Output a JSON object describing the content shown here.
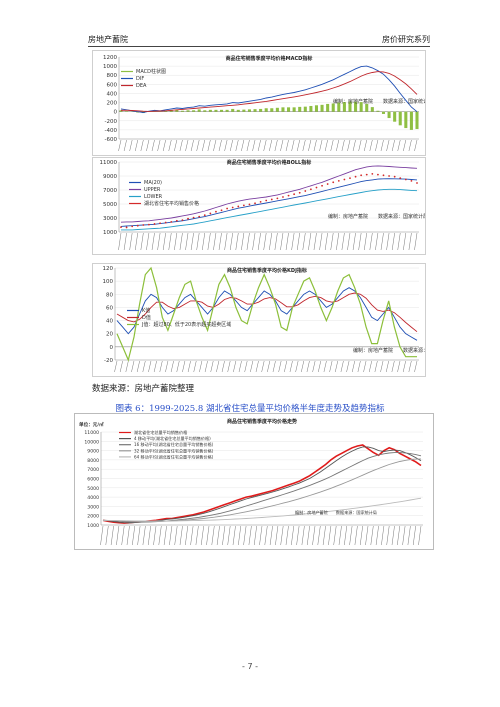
{
  "header": {
    "left": "房地产蓄院",
    "right": "房价研究系列"
  },
  "footer": {
    "source": "数据来源：房地产蓄院整理",
    "caption": "图表 6：1999-2025.8 湖北省住宅总量平均价格半年度走势及趋势指标",
    "page_number": "- 7 -"
  },
  "chart_data": [
    {
      "type": "line",
      "title": "商品住宅销售季度平均价格MACD指标",
      "yticks": [
        "1200",
        "1000",
        "800",
        "600",
        "400",
        "200",
        "0",
        "-200",
        "-400",
        "-600"
      ],
      "ylim": [
        -600,
        1200
      ],
      "legend": [
        "MACD柱状图",
        "DIF",
        "DEA"
      ],
      "note": "编制：房地产蓄院　　数据来源：国家统计局",
      "series": [
        {
          "name": "DIF",
          "color": "#1f4fb4",
          "values": [
            60,
            40,
            20,
            0,
            -20,
            10,
            30,
            20,
            40,
            60,
            80,
            70,
            90,
            100,
            130,
            120,
            140,
            150,
            160,
            170,
            200,
            190,
            210,
            230,
            250,
            270,
            300,
            320,
            350,
            380,
            400,
            420,
            450,
            480,
            520,
            560,
            600,
            650,
            700,
            760,
            820,
            880,
            940,
            990,
            1000,
            960,
            900,
            820,
            700,
            560,
            400,
            250,
            100,
            0
          ]
        },
        {
          "name": "DEA",
          "color": "#c0272d",
          "values": [
            30,
            30,
            25,
            20,
            10,
            5,
            10,
            15,
            20,
            30,
            40,
            50,
            60,
            70,
            80,
            90,
            100,
            110,
            120,
            130,
            140,
            150,
            165,
            180,
            195,
            210,
            225,
            245,
            265,
            285,
            305,
            325,
            345,
            370,
            395,
            420,
            450,
            480,
            520,
            560,
            610,
            660,
            720,
            780,
            830,
            860,
            880,
            870,
            840,
            780,
            700,
            610,
            500,
            380
          ]
        }
      ],
      "bars": [
        30,
        10,
        -5,
        -20,
        -30,
        5,
        20,
        5,
        20,
        30,
        40,
        20,
        30,
        30,
        50,
        30,
        40,
        40,
        40,
        40,
        60,
        40,
        45,
        50,
        55,
        60,
        75,
        75,
        85,
        95,
        95,
        95,
        105,
        110,
        125,
        140,
        150,
        170,
        180,
        200,
        210,
        220,
        220,
        210,
        170,
        100,
        20,
        -50,
        -140,
        -220,
        -300,
        -360,
        -400,
        -380
      ]
    },
    {
      "type": "line",
      "title": "商品住宅销售季度平均价格BOLL指标",
      "yticks": [
        "11000",
        "9000",
        "7000",
        "5000",
        "3000",
        "1000"
      ],
      "ylim": [
        1000,
        11000
      ],
      "legend": [
        "MA(20)",
        "UPPER",
        "LOWER",
        "湖北省住宅平均销售价格"
      ],
      "note": "编制：房地产蓄院　　数据来源：国家统计局",
      "series": [
        {
          "name": "UPPER",
          "color": "#7a3fa0",
          "values": [
            2400,
            2450,
            2450,
            2500,
            2550,
            2600,
            2700,
            2800,
            2900,
            3000,
            3150,
            3300,
            3450,
            3600,
            3800,
            4000,
            4250,
            4500,
            4750,
            5000,
            5200,
            5400,
            5550,
            5700,
            5800,
            5900,
            6000,
            6150,
            6300,
            6500,
            6700,
            6900,
            7100,
            7350,
            7600,
            7850,
            8100,
            8400,
            8700,
            9000,
            9300,
            9600,
            9900,
            10100,
            10300,
            10400,
            10450,
            10400,
            10350,
            10300,
            10250,
            10200,
            10150,
            10100
          ]
        },
        {
          "name": "MA(20)",
          "color": "#1f4fb4",
          "values": [
            1800,
            1850,
            1900,
            1950,
            2000,
            2050,
            2100,
            2200,
            2300,
            2400,
            2500,
            2600,
            2750,
            2900,
            3050,
            3200,
            3400,
            3600,
            3800,
            4000,
            4200,
            4400,
            4550,
            4700,
            4850,
            5000,
            5150,
            5300,
            5450,
            5600,
            5750,
            5900,
            6050,
            6200,
            6400,
            6600,
            6800,
            7000,
            7200,
            7400,
            7600,
            7800,
            8000,
            8200,
            8350,
            8450,
            8550,
            8600,
            8620,
            8600,
            8580,
            8550,
            8500,
            8450
          ]
        },
        {
          "name": "LOWER",
          "color": "#27a0c8",
          "values": [
            1300,
            1300,
            1300,
            1350,
            1400,
            1450,
            1500,
            1550,
            1650,
            1750,
            1850,
            1950,
            2050,
            2150,
            2300,
            2450,
            2600,
            2750,
            2900,
            3050,
            3200,
            3350,
            3500,
            3650,
            3800,
            3950,
            4100,
            4250,
            4400,
            4550,
            4700,
            4850,
            5000,
            5150,
            5300,
            5450,
            5600,
            5750,
            5900,
            6050,
            6200,
            6350,
            6500,
            6650,
            6800,
            6900,
            7000,
            7050,
            7100,
            7100,
            7050,
            7000,
            6950,
            6900
          ]
        },
        {
          "name": "湖北省住宅平均销售价格",
          "color": "#d42a2a",
          "values": [
            1700,
            1650,
            1800,
            1900,
            2000,
            2050,
            2150,
            2250,
            2350,
            2450,
            2600,
            2700,
            2900,
            3050,
            3200,
            3400,
            3650,
            3900,
            4100,
            4350,
            4500,
            4650,
            4800,
            4950,
            5100,
            5300,
            5500,
            5650,
            5800,
            6000,
            6200,
            6400,
            6600,
            6850,
            7100,
            7350,
            7600,
            7850,
            8100,
            8300,
            8500,
            8700,
            8900,
            9100,
            9200,
            9300,
            9200,
            9100,
            9000,
            8900,
            8700,
            8500,
            8300,
            8000
          ]
        }
      ]
    },
    {
      "type": "line",
      "title": "商品住宅销售季度平均价格KDJ指标",
      "yticks": [
        "120",
        "100",
        "80",
        "60",
        "40",
        "20",
        "0",
        "-20"
      ],
      "ylim": [
        -20,
        120
      ],
      "legend": [
        "K值",
        "D值",
        "J值：超过80、低于20表示超买超卖区域"
      ],
      "note": "编制：房地产蓄院　　数据来源：国家统计局",
      "series": [
        {
          "name": "K值",
          "color": "#1f4fb4",
          "values": [
            40,
            30,
            20,
            30,
            50,
            70,
            80,
            75,
            60,
            50,
            55,
            65,
            75,
            80,
            70,
            60,
            50,
            60,
            75,
            85,
            80,
            70,
            60,
            55,
            65,
            75,
            85,
            80,
            70,
            55,
            50,
            60,
            70,
            80,
            85,
            80,
            70,
            60,
            65,
            75,
            85,
            90,
            85,
            75,
            60,
            45,
            40,
            50,
            60,
            45,
            30,
            20,
            15,
            10
          ]
        },
        {
          "name": "D值",
          "color": "#c0272d",
          "values": [
            50,
            45,
            40,
            38,
            42,
            50,
            60,
            68,
            68,
            62,
            58,
            60,
            65,
            70,
            70,
            68,
            62,
            60,
            65,
            72,
            75,
            74,
            70,
            65,
            65,
            68,
            73,
            75,
            73,
            67,
            61,
            61,
            64,
            70,
            75,
            77,
            75,
            70,
            68,
            70,
            75,
            80,
            82,
            80,
            74,
            64,
            56,
            54,
            56,
            52,
            45,
            37,
            30,
            23
          ]
        },
        {
          "name": "J值",
          "color": "#8cbf3a",
          "values": [
            20,
            0,
            -20,
            15,
            65,
            110,
            120,
            90,
            45,
            25,
            50,
            75,
            95,
            100,
            70,
            45,
            25,
            60,
            95,
            110,
            90,
            60,
            40,
            35,
            65,
            90,
            110,
            90,
            65,
            30,
            25,
            60,
            80,
            100,
            105,
            85,
            60,
            40,
            60,
            85,
            105,
            110,
            90,
            65,
            30,
            5,
            5,
            40,
            70,
            30,
            0,
            -15,
            -15,
            -15
          ]
        }
      ]
    },
    {
      "type": "line",
      "title": "商品住宅销售季度平均价格走势",
      "yticks": [
        "11000",
        "10000",
        "9000",
        "8000",
        "7000",
        "6000",
        "5000",
        "4000",
        "3000",
        "2000",
        "1000"
      ],
      "ylim": [
        1000,
        11000
      ],
      "y_unit": "单位：元/㎡",
      "legend": [
        "湖北省住宅总量平均销售价格",
        "4 移动平均(湖北省住宅总量平均销售价格)",
        "16 移动平均(湖北省住宅总量平均销售价格)",
        "32 移动平均(湖北省住宅总量平均销售价格)",
        "64 移动平均(湖北省住宅总量平均销售价格)"
      ],
      "note": "编制：房地产蓄院　　数据来源：国家统计局",
      "series": [
        {
          "name": "湖北省住宅总量平均销售价格",
          "color": "#e01b1b",
          "values": [
            1500,
            1400,
            1300,
            1250,
            1200,
            1250,
            1300,
            1350,
            1400,
            1450,
            1500,
            1600,
            1700,
            1700,
            1800,
            1900,
            2000,
            2100,
            2250,
            2400,
            2600,
            2800,
            3000,
            3200,
            3400,
            3600,
            3800,
            4000,
            4100,
            4250,
            4400,
            4550,
            4700,
            4900,
            5100,
            5300,
            5500,
            5700,
            6000,
            6300,
            6700,
            7100,
            7500,
            8000,
            8400,
            8700,
            9000,
            9300,
            9500,
            9600,
            9200,
            8800,
            8500,
            9000,
            9300,
            9100,
            8700,
            8400,
            8100,
            7800,
            7400
          ]
        },
        {
          "name": "4 移动平均",
          "color": "#555555",
          "values": [
            1500,
            1450,
            1380,
            1300,
            1250,
            1230,
            1260,
            1300,
            1350,
            1400,
            1450,
            1520,
            1600,
            1660,
            1720,
            1800,
            1900,
            2000,
            2120,
            2260,
            2420,
            2600,
            2800,
            3000,
            3200,
            3400,
            3600,
            3800,
            3950,
            4100,
            4250,
            4400,
            4550,
            4720,
            4900,
            5100,
            5300,
            5500,
            5750,
            6000,
            6350,
            6700,
            7100,
            7500,
            7900,
            8300,
            8650,
            8950,
            9200,
            9400,
            9400,
            9250,
            9000,
            8900,
            9000,
            9050,
            9000,
            8800,
            8550,
            8250,
            7900
          ]
        },
        {
          "name": "16 移动平均",
          "color": "#777777",
          "values": [
            1500,
            1480,
            1440,
            1400,
            1360,
            1320,
            1300,
            1300,
            1310,
            1330,
            1360,
            1400,
            1440,
            1490,
            1540,
            1600,
            1670,
            1740,
            1820,
            1910,
            2010,
            2120,
            2240,
            2380,
            2530,
            2690,
            2860,
            3040,
            3210,
            3390,
            3570,
            3750,
            3930,
            4100,
            4280,
            4460,
            4650,
            4850,
            5050,
            5260,
            5480,
            5710,
            5960,
            6220,
            6500,
            6780,
            7070,
            7360,
            7650,
            7930,
            8180,
            8380,
            8540,
            8660,
            8740,
            8780,
            8790,
            8750,
            8680,
            8570,
            8440
          ]
        },
        {
          "name": "32 移动平均",
          "color": "#999999",
          "values": [
            1500,
            1490,
            1470,
            1450,
            1430,
            1410,
            1390,
            1380,
            1370,
            1370,
            1380,
            1390,
            1410,
            1430,
            1460,
            1500,
            1540,
            1590,
            1640,
            1700,
            1770,
            1840,
            1920,
            2010,
            2100,
            2200,
            2310,
            2420,
            2540,
            2660,
            2790,
            2920,
            3060,
            3200,
            3350,
            3500,
            3660,
            3820,
            3990,
            4170,
            4350,
            4540,
            4740,
            4950,
            5170,
            5390,
            5620,
            5860,
            6110,
            6360,
            6610,
            6850,
            7080,
            7300,
            7500,
            7680,
            7830,
            7950,
            8040,
            8090,
            8110
          ]
        },
        {
          "name": "64 移动平均",
          "color": "#bbbbbb",
          "values": [
            1500,
            1495,
            1485,
            1475,
            1465,
            1455,
            1445,
            1440,
            1435,
            1432,
            1430,
            1430,
            1432,
            1436,
            1442,
            1450,
            1460,
            1472,
            1486,
            1502,
            1520,
            1540,
            1562,
            1586,
            1612,
            1640,
            1670,
            1702,
            1736,
            1772,
            1810,
            1850,
            1892,
            1936,
            1982,
            2030,
            2080,
            2132,
            2186,
            2242,
            2300,
            2360,
            2422,
            2486,
            2552,
            2620,
            2690,
            2762,
            2836,
            2912,
            2990,
            3070,
            3152,
            3236,
            3322,
            3410,
            3500,
            3592,
            3686,
            3782,
            3880
          ]
        }
      ]
    }
  ]
}
